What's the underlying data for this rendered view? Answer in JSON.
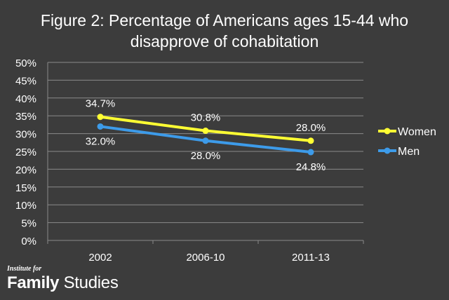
{
  "title_line1": "Figure 2: Percentage of Americans ages 15-44 who",
  "title_line2": "disapprove of cohabitation",
  "logo": {
    "top": "Institute for",
    "bold": "Family",
    "rest": " Studies"
  },
  "chart_data": {
    "type": "line",
    "title": "Figure 2: Percentage of Americans ages 15-44 who disapprove of cohabitation",
    "categories": [
      "2002",
      "2006-10",
      "2011-13"
    ],
    "ylim": [
      0,
      50
    ],
    "yticks": [
      0,
      5,
      10,
      15,
      20,
      25,
      30,
      35,
      40,
      45,
      50
    ],
    "ytick_labels": [
      "0%",
      "5%",
      "10%",
      "15%",
      "20%",
      "25%",
      "30%",
      "35%",
      "40%",
      "45%",
      "50%"
    ],
    "grid": true,
    "legend_position": "right",
    "series": [
      {
        "name": "Women",
        "color": "#ffff33",
        "values": [
          34.7,
          30.8,
          28.0
        ],
        "labels": [
          "34.7%",
          "30.8%",
          "28.0%"
        ],
        "label_position": "above"
      },
      {
        "name": "Men",
        "color": "#3d9be9",
        "values": [
          32.0,
          28.0,
          24.8
        ],
        "labels": [
          "32.0%",
          "28.0%",
          "24.8%"
        ],
        "label_position": "below"
      }
    ]
  }
}
